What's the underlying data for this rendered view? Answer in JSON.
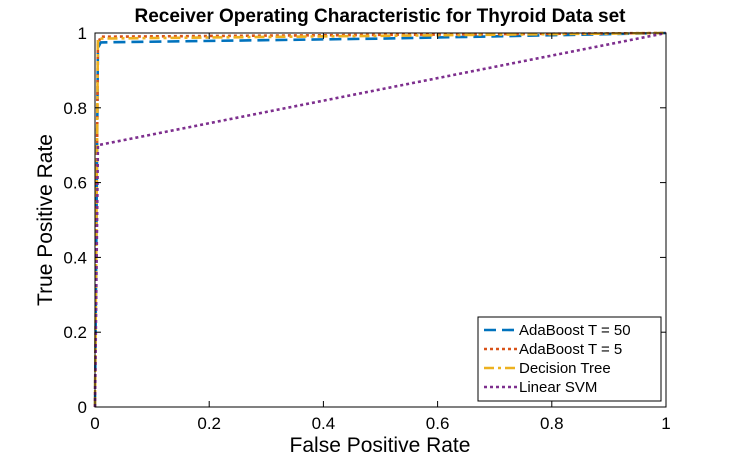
{
  "chart_data": {
    "type": "line",
    "title": "Receiver Operating Characteristic for Thyroid Data set",
    "xlabel": "False Positive Rate",
    "ylabel": "True Positive Rate",
    "xlim": [
      0,
      1
    ],
    "ylim": [
      0,
      1
    ],
    "xticks": [
      0,
      0.2,
      0.4,
      0.6,
      0.8,
      1
    ],
    "xtick_labels": [
      "0",
      "0.2",
      "0.4",
      "0.6",
      "0.8",
      "1"
    ],
    "yticks": [
      0,
      0.2,
      0.4,
      0.6,
      0.8,
      1
    ],
    "ytick_labels": [
      "0",
      "0.2",
      "0.4",
      "0.6",
      "0.8",
      "1"
    ],
    "grid": false,
    "legend_position": "bottom-right",
    "series": [
      {
        "name": "AdaBoost T = 50",
        "color": "#0072BD",
        "dash": "dashed",
        "x": [
          0,
          0.005,
          0.01,
          0.5,
          1
        ],
        "y": [
          0,
          0.96,
          0.975,
          0.985,
          1
        ]
      },
      {
        "name": "AdaBoost T = 5",
        "color": "#D95319",
        "dash": "dotted",
        "x": [
          0,
          0.005,
          0.01,
          1
        ],
        "y": [
          0,
          0.97,
          0.99,
          1
        ]
      },
      {
        "name": "Decision Tree",
        "color": "#EDB120",
        "dash": "dash-dot",
        "x": [
          0,
          0.005,
          1
        ],
        "y": [
          0,
          0.985,
          1
        ]
      },
      {
        "name": "Linear SVM",
        "color": "#7E2F8E",
        "dash": "dotted",
        "x": [
          0,
          0.005,
          1
        ],
        "y": [
          0,
          0.7,
          1
        ]
      }
    ]
  }
}
